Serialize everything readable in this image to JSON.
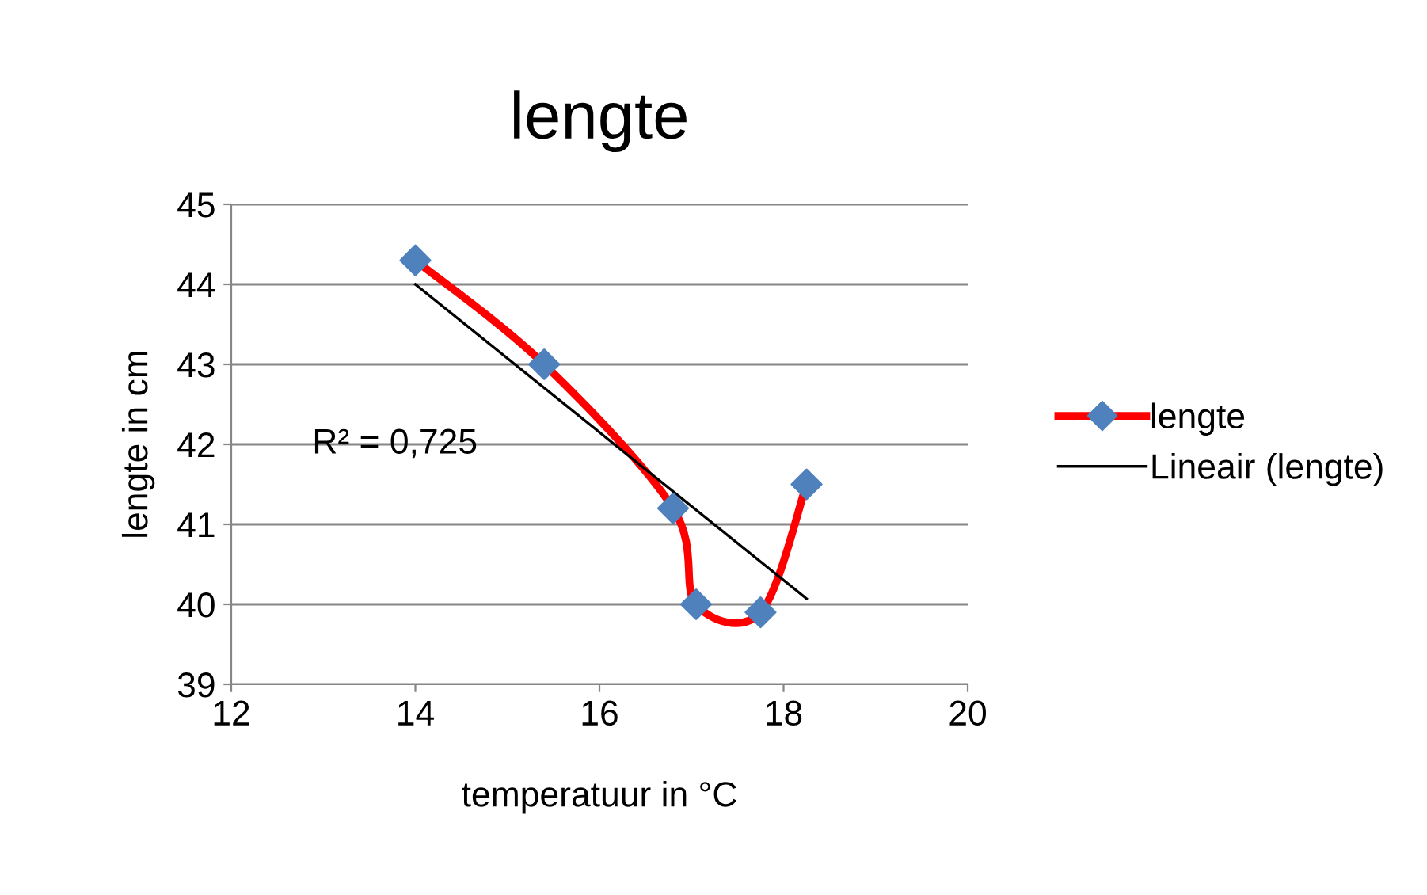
{
  "chart_data": {
    "type": "line",
    "title": "lengte",
    "xlabel": "temperatuur in °C",
    "ylabel": "lengte in cm",
    "xlim": [
      12,
      20
    ],
    "xticks": [
      12,
      14,
      16,
      18,
      20
    ],
    "ylim": [
      39,
      45
    ],
    "yticks": [
      39,
      40,
      41,
      42,
      43,
      44,
      45
    ],
    "grid": "y",
    "legend": "right",
    "line_style": "solid",
    "series": [
      {
        "name": "lengte",
        "marker": "diamond",
        "color": "#ff0000",
        "colors": [
          "#4f81bd",
          "#4f81bd",
          "#4f81bd",
          "#4f81bd",
          "#4f81bd",
          "#4f81bd"
        ],
        "x": [
          14.0,
          15.4,
          16.8,
          17.05,
          17.75,
          18.25
        ],
        "values": [
          44.3,
          43.0,
          41.2,
          40.0,
          39.9,
          41.5
        ]
      },
      {
        "name": "Lineair (lengte)",
        "type": "line",
        "marker": "none",
        "color": "#000000",
        "x": [
          14.0,
          18.25
        ],
        "values": [
          44.0,
          40.07
        ]
      }
    ],
    "annotations": [
      "R² = 0,725"
    ]
  }
}
